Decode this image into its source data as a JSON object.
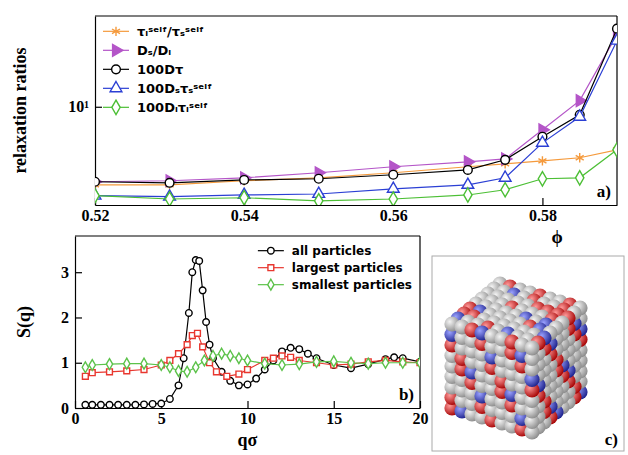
{
  "chart_data": [
    {
      "type": "line",
      "xlabel": "ϕ",
      "ylabel": "relaxation ratios",
      "annotations": [
        "a)"
      ],
      "x": [
        0.52,
        0.53,
        0.54,
        0.55,
        0.56,
        0.57,
        0.575,
        0.58,
        0.585,
        0.59
      ],
      "series": [
        {
          "name": "τₗˢᵉˡᶠ/τₛˢᵉˡᶠ",
          "color": "#f59a3c",
          "marker": "asterisk",
          "values": [
            3.32,
            3.32,
            3.52,
            3.67,
            3.94,
            4.29,
            4.47,
            4.66,
            4.87,
            5.45
          ]
        },
        {
          "name": "Dₛ/Dₗ",
          "color": "#b455c8",
          "marker": "triangle-right",
          "values": [
            3.47,
            3.52,
            3.67,
            3.94,
            4.29,
            4.6,
            4.79,
            7.22,
            10.9,
            27.7
          ]
        },
        {
          "name": "100Dτ",
          "color": "#000000",
          "marker": "circle",
          "values": [
            3.47,
            3.42,
            3.56,
            3.62,
            3.83,
            4.1,
            4.73,
            6.55,
            8.93,
            30.1
          ]
        },
        {
          "name": "100Dₛτₛˢᵉˡᶠ",
          "color": "#2b3fd4",
          "marker": "triangle",
          "values": [
            2.85,
            2.81,
            2.88,
            2.92,
            3.14,
            3.32,
            3.67,
            6.01,
            8.68,
            25.4
          ]
        },
        {
          "name": "100Dₗτₗˢᵉˡᶠ",
          "color": "#4cbf35",
          "marker": "diamond",
          "values": [
            2.85,
            2.72,
            2.77,
            2.65,
            2.72,
            2.88,
            3.1,
            3.62,
            3.67,
            5.45
          ]
        }
      ],
      "xlim": [
        0.52,
        0.59
      ],
      "xticks": [
        0.52,
        0.54,
        0.56,
        0.58
      ],
      "ylim": [
        2.5,
        36
      ],
      "yticks": [
        {
          "value": 10,
          "label": "10¹"
        }
      ],
      "log": "y",
      "legend": "upper left",
      "grid": false
    },
    {
      "type": "line",
      "xlabel": "qσ",
      "ylabel": "S(q)",
      "annotations": [
        "b)"
      ],
      "series": [
        {
          "name": "all particles",
          "color": "#000000",
          "marker": "circle",
          "x": [
            0.6,
            1,
            1.5,
            2,
            2.5,
            3,
            3.5,
            4,
            4.5,
            5,
            5.5,
            6,
            6.3,
            6.6,
            6.8,
            7.0,
            7.2,
            7.4,
            7.6,
            7.8,
            8.0,
            8.5,
            9,
            9.5,
            10,
            10.5,
            11,
            11.5,
            12,
            12.5,
            13,
            13.5,
            14,
            15,
            16,
            17,
            18,
            18.5,
            19,
            20
          ],
          "values": [
            0.07,
            0.07,
            0.07,
            0.07,
            0.07,
            0.07,
            0.07,
            0.08,
            0.09,
            0.1,
            0.2,
            0.5,
            1.1,
            2.1,
            3.0,
            3.27,
            3.25,
            2.6,
            1.9,
            1.4,
            1.1,
            0.8,
            0.6,
            0.5,
            0.52,
            0.65,
            0.85,
            1.05,
            1.25,
            1.33,
            1.3,
            1.2,
            1.1,
            0.95,
            0.88,
            0.97,
            1.08,
            1.12,
            1.1,
            1.02
          ]
        },
        {
          "name": "largest particles",
          "color": "#e8372f",
          "marker": "square",
          "x": [
            0.6,
            1,
            2,
            3,
            4,
            5,
            5.5,
            6,
            6.5,
            6.8,
            7.1,
            7.4,
            7.8,
            8.2,
            8.8,
            9.5,
            10,
            11,
            11.5,
            12,
            12.5,
            13,
            14,
            15,
            16,
            17,
            18,
            19,
            20
          ],
          "values": [
            0.7,
            0.78,
            0.8,
            0.82,
            0.85,
            0.95,
            1.05,
            1.2,
            1.4,
            1.6,
            1.65,
            1.35,
            1.0,
            0.8,
            0.7,
            0.75,
            0.85,
            1.05,
            1.1,
            1.15,
            1.12,
            1.05,
            1.0,
            0.95,
            0.97,
            1.02,
            1.05,
            1.02,
            1.0
          ]
        },
        {
          "name": "smallest particles",
          "color": "#5cc24a",
          "marker": "diamond",
          "x": [
            0.6,
            1,
            2,
            3,
            4,
            5,
            5.5,
            6,
            6.5,
            7,
            7.5,
            8,
            8.5,
            9,
            9.5,
            10,
            11,
            12,
            13,
            14,
            15,
            16,
            17,
            18,
            19,
            20
          ],
          "values": [
            0.9,
            0.95,
            0.97,
            0.98,
            0.98,
            0.95,
            0.9,
            0.82,
            0.8,
            0.9,
            1.05,
            1.15,
            1.2,
            1.15,
            1.1,
            1.05,
            0.98,
            0.95,
            0.97,
            1.02,
            1.03,
            1.0,
            0.98,
            1.0,
            1.0,
            1.0
          ]
        }
      ],
      "xlim": [
        0,
        20
      ],
      "xticks": [
        0,
        5,
        10,
        15,
        20
      ],
      "ylim": [
        0,
        3.8
      ],
      "yticks": [
        0,
        1,
        2,
        3
      ],
      "legend": "upper right",
      "grid": false
    }
  ],
  "image": {
    "annotations": [
      "c)"
    ]
  }
}
